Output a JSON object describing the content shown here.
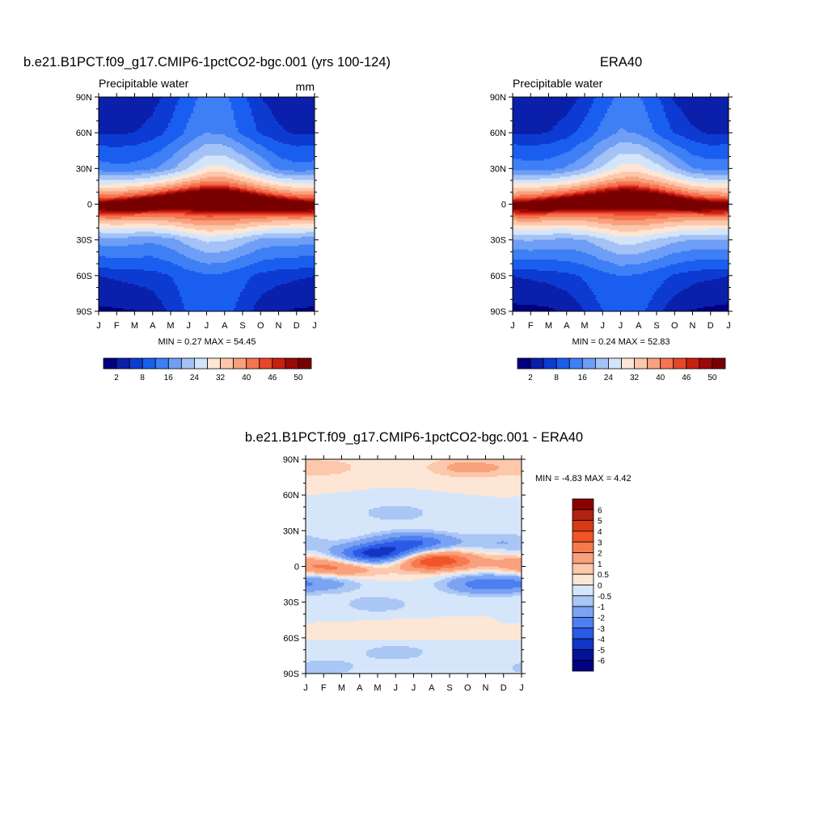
{
  "panels": [
    {
      "title": "b.e21.B1PCT.f09_g17.CMIP6-1pctCO2-bgc.001 (yrs 100-124)",
      "left_string": "Precipitable water",
      "right_string": "mm",
      "min_max": "MIN =   0.27 MAX =  54.45"
    },
    {
      "title": "ERA40",
      "left_string": "Precipitable water",
      "right_string": "",
      "min_max": "MIN =   0.24 MAX =  52.83"
    },
    {
      "title": "b.e21.B1PCT.f09_g17.CMIP6-1pctCO2-bgc.001 - ERA40",
      "left_string": "",
      "right_string": "",
      "min_max": "MIN =  -4.83 MAX =   4.42"
    }
  ],
  "axes": {
    "y_ticks": [
      "90N",
      "60N",
      "30N",
      "0",
      "30S",
      "60S",
      "90S"
    ],
    "x_ticks": [
      "J",
      "F",
      "M",
      "A",
      "M",
      "J",
      "J",
      "A",
      "S",
      "O",
      "N",
      "D",
      "J"
    ]
  },
  "colorbars": {
    "abs": {
      "labels": [
        "2",
        "8",
        "16",
        "24",
        "32",
        "40",
        "46",
        "50"
      ],
      "colors": [
        "#000080",
        "#0a1faa",
        "#0d3bd2",
        "#1a5ef0",
        "#3e7ff5",
        "#6e9ef5",
        "#a4c2f5",
        "#d3e5fa",
        "#fde6d6",
        "#fcc7ab",
        "#f9a07c",
        "#f57452",
        "#e8462a",
        "#c81f10",
        "#9c0808",
        "#780000"
      ]
    },
    "diff": {
      "labels": [
        "6",
        "5",
        "4",
        "3",
        "2",
        "1",
        "0.5",
        "0",
        "-0.5",
        "-1",
        "-2",
        "-3",
        "-4",
        "-5",
        "-6"
      ],
      "colors": [
        "#8b0000",
        "#b22210",
        "#d93a15",
        "#f0552a",
        "#f77a4e",
        "#f9a07c",
        "#fcc7ab",
        "#fde6d6",
        "#d6e6fa",
        "#a9c6f5",
        "#7ba3f2",
        "#4d7ff0",
        "#2a5ae6",
        "#1235c4",
        "#031296",
        "#000080"
      ]
    }
  },
  "chart_data": [
    {
      "type": "heatmap",
      "title": "b.e21.B1PCT.f09_g17.CMIP6-1pctCO2-bgc.001 (yrs 100-124)",
      "variable": "Precipitable water",
      "units": "mm",
      "x": [
        "J",
        "F",
        "M",
        "A",
        "M",
        "J",
        "J",
        "A",
        "S",
        "O",
        "N",
        "D",
        "J"
      ],
      "y": [
        "90S",
        "60S",
        "30S",
        "0",
        "30N",
        "60N",
        "90N"
      ],
      "levels": [
        2,
        5,
        8,
        12,
        16,
        20,
        24,
        28,
        32,
        36,
        40,
        44,
        46,
        48,
        50
      ],
      "min": 0.27,
      "max": 54.45,
      "max_band": {
        "lat_jan": -4,
        "lat_jul": 8
      },
      "values": [
        [
          1.5,
          1.6,
          1.9,
          3.0,
          5.5,
          8.5,
          11.0,
          9.5,
          6.5,
          3.5,
          2.2,
          1.7,
          1.5
        ],
        [
          5.0,
          5.5,
          6.0,
          6.5,
          8.0,
          10.0,
          11.5,
          11.0,
          9.0,
          7.0,
          6.0,
          5.5,
          5.0
        ],
        [
          18.0,
          18.5,
          17.5,
          17.0,
          18.5,
          22.0,
          25.0,
          24.5,
          22.0,
          19.0,
          18.0,
          18.0,
          18.0
        ],
        [
          46.0,
          47.5,
          49.0,
          50.5,
          52.0,
          53.0,
          53.5,
          53.5,
          53.0,
          51.5,
          49.5,
          47.5,
          46.0
        ],
        [
          14.0,
          13.0,
          13.5,
          15.5,
          19.0,
          24.0,
          29.0,
          29.5,
          25.5,
          20.0,
          15.0,
          13.5,
          14.0
        ],
        [
          4.5,
          4.5,
          5.0,
          6.0,
          9.0,
          13.0,
          16.0,
          15.0,
          11.0,
          7.5,
          5.5,
          4.5,
          4.5
        ],
        [
          2.5,
          2.5,
          3.0,
          4.0,
          6.0,
          10.0,
          14.0,
          13.0,
          9.0,
          5.0,
          3.5,
          2.7,
          2.5
        ]
      ]
    },
    {
      "type": "heatmap",
      "title": "ERA40",
      "variable": "Precipitable water",
      "x": [
        "J",
        "F",
        "M",
        "A",
        "M",
        "J",
        "J",
        "A",
        "S",
        "O",
        "N",
        "D",
        "J"
      ],
      "y": [
        "90S",
        "60S",
        "30S",
        "0",
        "30N",
        "60N",
        "90N"
      ],
      "levels": [
        2,
        5,
        8,
        12,
        16,
        20,
        24,
        28,
        32,
        36,
        40,
        44,
        46,
        48,
        50
      ],
      "min": 0.24,
      "max": 52.83,
      "max_band": {
        "lat_jan": -4,
        "lat_jul": 8
      },
      "values": [
        [
          1.2,
          1.2,
          1.5,
          2.5,
          5.0,
          8.0,
          10.5,
          9.0,
          6.0,
          3.0,
          1.8,
          1.4,
          1.2
        ],
        [
          5.0,
          5.5,
          6.0,
          7.0,
          8.5,
          10.5,
          12.0,
          11.5,
          9.5,
          7.5,
          6.0,
          5.5,
          5.0
        ],
        [
          20.0,
          20.5,
          19.5,
          19.0,
          20.0,
          23.0,
          26.0,
          25.5,
          23.5,
          21.0,
          20.0,
          20.0,
          20.0
        ],
        [
          45.0,
          46.5,
          48.0,
          49.0,
          50.0,
          51.0,
          51.5,
          51.5,
          51.0,
          49.5,
          47.5,
          46.0,
          45.0
        ],
        [
          15.0,
          14.0,
          14.5,
          16.5,
          20.0,
          25.0,
          29.5,
          30.0,
          26.0,
          21.0,
          16.0,
          14.5,
          15.0
        ],
        [
          4.5,
          4.5,
          5.0,
          6.5,
          9.5,
          13.5,
          16.5,
          15.5,
          11.5,
          7.5,
          5.5,
          4.5,
          4.5
        ],
        [
          2.0,
          2.0,
          2.5,
          3.5,
          5.5,
          9.5,
          13.5,
          12.5,
          8.5,
          4.5,
          3.0,
          2.2,
          2.0
        ]
      ]
    },
    {
      "type": "heatmap",
      "title": "b.e21.B1PCT.f09_g17.CMIP6-1pctCO2-bgc.001 - ERA40",
      "x": [
        "J",
        "F",
        "M",
        "A",
        "M",
        "J",
        "J",
        "A",
        "S",
        "O",
        "N",
        "D",
        "J"
      ],
      "y": [
        "90S",
        "60S",
        "30S",
        "0",
        "30N",
        "60N",
        "90N"
      ],
      "levels": [
        -6,
        -5,
        -4,
        -3,
        -2,
        -1,
        -0.5,
        0,
        0.5,
        1,
        2,
        3,
        4,
        5,
        6
      ],
      "min": -4.83,
      "max": 4.42,
      "features": [
        {
          "lat": -85,
          "month": 1,
          "sign": "-",
          "peak": -0.8
        },
        {
          "lat": -72,
          "month": 5,
          "sign": "-",
          "peak": -0.8
        },
        {
          "lat": -55,
          "month": 5,
          "sign": "+",
          "peak": 0.4
        },
        {
          "lat": -32,
          "month": 4,
          "sign": "-",
          "peak": -0.8
        },
        {
          "lat": -15,
          "month": 10,
          "sign": "-",
          "peak": -2.5
        },
        {
          "lat": -13,
          "month": 1,
          "sign": "-",
          "peak": -1.5
        },
        {
          "lat": -2,
          "month": 2,
          "sign": "+",
          "peak": 2.0
        },
        {
          "lat": 5,
          "month": 7,
          "sign": "+",
          "peak": 4.4
        },
        {
          "lat": 2,
          "month": 12,
          "sign": "+",
          "peak": 1.2
        },
        {
          "lat": 10,
          "month": 4,
          "sign": "-",
          "peak": -4.8
        },
        {
          "lat": 20,
          "month": 6,
          "sign": "-",
          "peak": -3.0
        },
        {
          "lat": 20,
          "month": 11,
          "sign": "-",
          "peak": -1.0
        },
        {
          "lat": 45,
          "month": 5,
          "sign": "-",
          "peak": -0.8
        },
        {
          "lat": 83,
          "month": 1,
          "sign": "+",
          "peak": 0.8
        },
        {
          "lat": 83,
          "month": 9,
          "sign": "+",
          "peak": 1.3
        }
      ]
    }
  ]
}
